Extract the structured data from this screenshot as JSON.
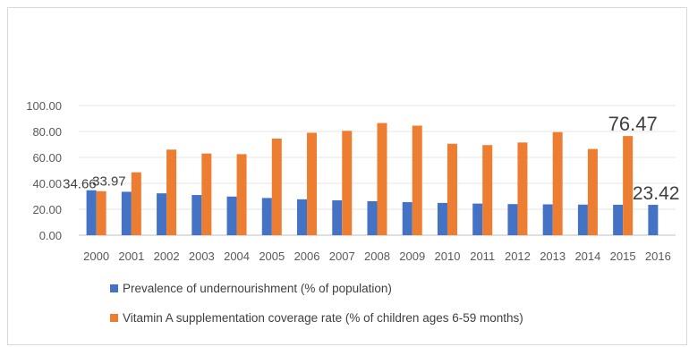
{
  "chart_data": {
    "type": "bar",
    "title": "",
    "xlabel": "",
    "ylabel": "",
    "ylim": [
      0,
      100
    ],
    "yticks": [
      "0.00",
      "20.00",
      "40.00",
      "60.00",
      "80.00",
      "100.00"
    ],
    "grid": true,
    "legend_position": "bottom-left",
    "categories": [
      "2000",
      "2001",
      "2002",
      "2003",
      "2004",
      "2005",
      "2006",
      "2007",
      "2008",
      "2009",
      "2010",
      "2011",
      "2012",
      "2013",
      "2014",
      "2015",
      "2016"
    ],
    "series": [
      {
        "name": "Prevalence of undernourishment (% of population)",
        "color": "#4472c4",
        "values": [
          34.66,
          33.5,
          32.3,
          31.0,
          29.8,
          28.7,
          27.7,
          26.9,
          26.2,
          25.5,
          24.9,
          24.4,
          24.0,
          23.8,
          23.6,
          23.5,
          23.42
        ]
      },
      {
        "name": "Vitamin A supplementation coverage rate (% of children ages 6-59 months)",
        "color": "#ed7d31",
        "values": [
          33.97,
          48.5,
          66.0,
          63.0,
          62.5,
          74.5,
          79.0,
          80.5,
          86.5,
          84.5,
          70.5,
          69.5,
          71.5,
          79.5,
          66.5,
          76.47,
          null
        ]
      }
    ],
    "data_labels": [
      {
        "series": 0,
        "index": 0,
        "text": "34.66"
      },
      {
        "series": 1,
        "index": 0,
        "text": "33.97"
      },
      {
        "series": 1,
        "index": 15,
        "text": "76.47"
      },
      {
        "series": 0,
        "index": 16,
        "text": "23.42"
      }
    ]
  }
}
